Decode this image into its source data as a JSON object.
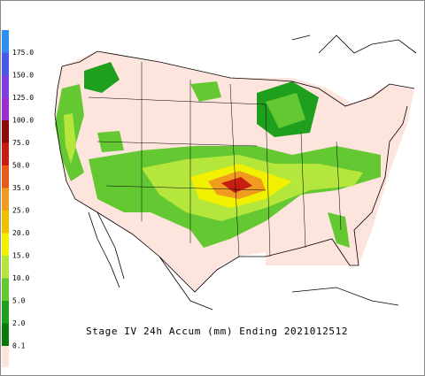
{
  "title": "Stage IV 24h Accum (mm) Ending 2021012512",
  "colorbar": {
    "labels": [
      "175.0",
      "150.0",
      "125.0",
      "100.0",
      "75.0",
      "50.0",
      "35.0",
      "25.0",
      "20.0",
      "15.0",
      "10.0",
      "5.0",
      "2.0",
      "0.1"
    ],
    "colors": [
      "#2f8cf0",
      "#4a5ae8",
      "#7f3fe0",
      "#9c2bd0",
      "#8b0a0a",
      "#c81e12",
      "#e85a1a",
      "#f09a20",
      "#f0c000",
      "#f0f000",
      "#b4e63c",
      "#64c832",
      "#1ea01e",
      "#0a780a",
      "#fde4dc"
    ]
  }
}
